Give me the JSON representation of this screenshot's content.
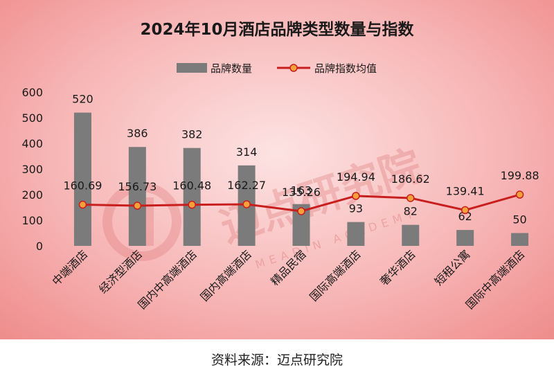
{
  "colors": {
    "bar": "#7b7b7b",
    "line": "#c81e1e",
    "marker_fill": "#f4a13b",
    "marker_stroke": "#c81e1e",
    "text": "#1a1a1a",
    "watermark": "#e07a7a"
  },
  "watermark": {
    "cn": "迈点研究院",
    "en": "MEADIN ACADEMY"
  },
  "source": "资料来源：迈点研究院",
  "chart_data": {
    "type": "bar",
    "title": "2024年10月酒店品牌类型数量与指数",
    "categories": [
      "中端酒店",
      "经济型酒店",
      "国内中高端酒店",
      "国内高端酒店",
      "精品民宿",
      "国际高端酒店",
      "奢华酒店",
      "短租公寓",
      "国际中高端酒店"
    ],
    "series": [
      {
        "name": "品牌数量",
        "type": "bar",
        "values": [
          520,
          386,
          382,
          314,
          163,
          93,
          82,
          62,
          50
        ],
        "labels": [
          "520",
          "386",
          "382",
          "314",
          "163",
          "93",
          "82",
          "62",
          "50"
        ]
      },
      {
        "name": "品牌指数均值",
        "type": "line",
        "values": [
          160.69,
          156.73,
          160.48,
          162.27,
          135.26,
          194.94,
          186.62,
          139.41,
          199.88
        ],
        "labels": [
          "160.69",
          "156.73",
          "160.48",
          "162.27",
          "135.26",
          "194.94",
          "186.62",
          "139.41",
          "199.88"
        ]
      }
    ],
    "yticks": [
      "0",
      "100",
      "200",
      "300",
      "400",
      "500",
      "600"
    ],
    "ylim": [
      0,
      600
    ],
    "legend": "top-center",
    "grid": false
  }
}
